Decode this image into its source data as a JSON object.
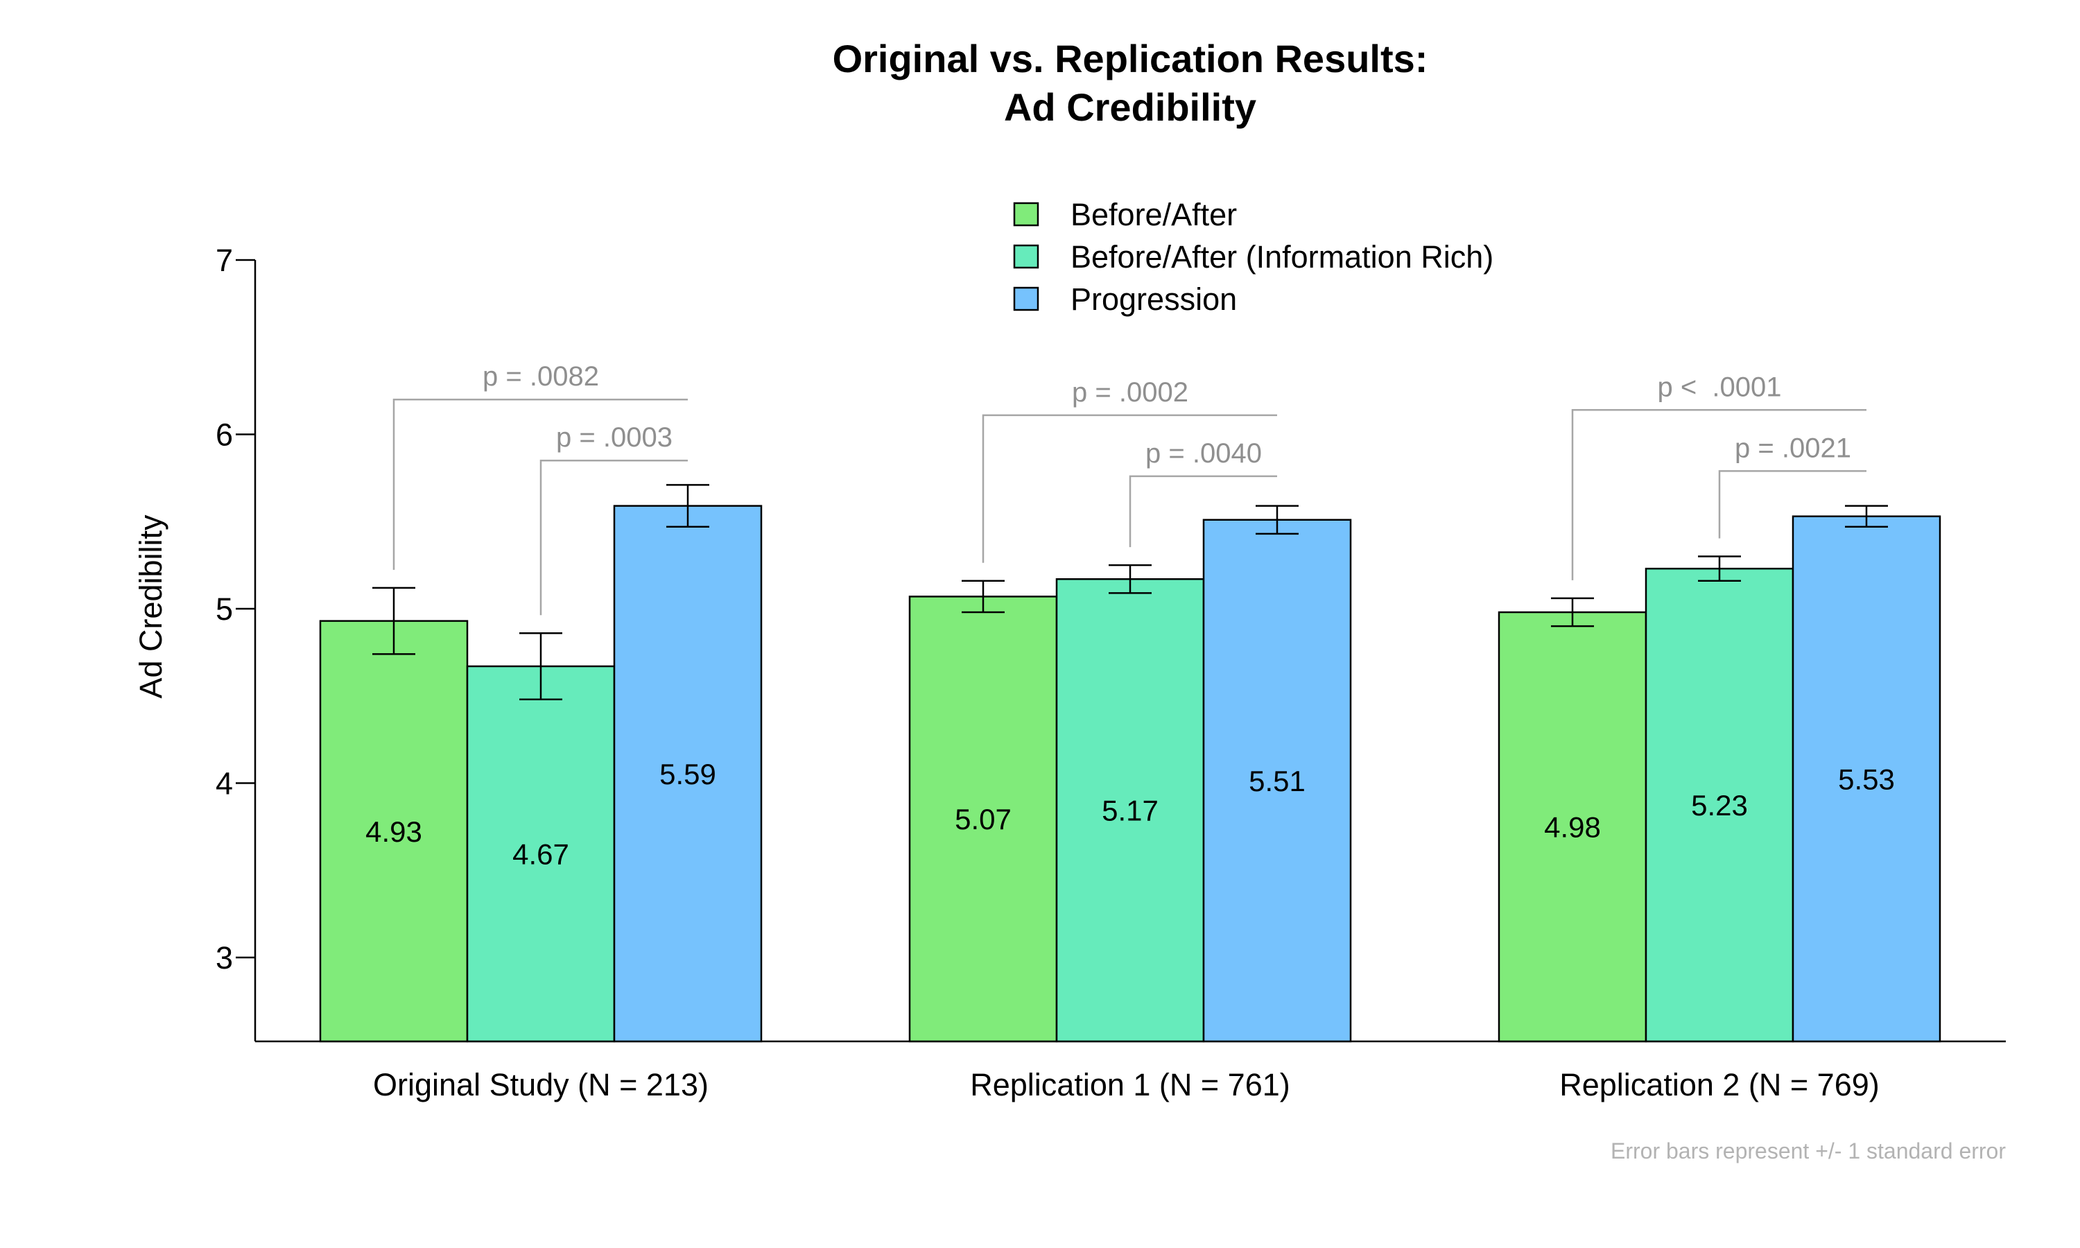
{
  "chart_data": {
    "type": "bar",
    "title": [
      "Original vs. Replication Results:",
      "Ad Credibility"
    ],
    "ylabel": "Ad Credibility",
    "xlabel": "",
    "ylim": [
      2.5,
      7
    ],
    "yticks": [
      3,
      4,
      5,
      6,
      7
    ],
    "grid": false,
    "legend_position": "top-center",
    "categories": [
      "Original Study (N = 213)",
      "Replication 1 (N = 761)",
      "Replication 2 (N = 769)"
    ],
    "series": [
      {
        "name": "Before/After",
        "color": "#80eb7a",
        "values": [
          4.93,
          5.07,
          4.98
        ],
        "se": [
          0.19,
          0.09,
          0.08
        ]
      },
      {
        "name": "Before/After (Information Rich)",
        "color": "#66ebbb",
        "values": [
          4.67,
          5.17,
          5.23
        ],
        "se": [
          0.19,
          0.08,
          0.07
        ]
      },
      {
        "name": "Progression",
        "color": "#76c2fd",
        "values": [
          5.59,
          5.51,
          5.53
        ],
        "se": [
          0.12,
          0.08,
          0.06
        ]
      }
    ],
    "comparisons": [
      {
        "group": 0,
        "from_series": 0,
        "to_series": 2,
        "label": "p = .0082",
        "level": 6.2
      },
      {
        "group": 0,
        "from_series": 1,
        "to_series": 2,
        "label": "p = .0003",
        "level": 5.85
      },
      {
        "group": 1,
        "from_series": 0,
        "to_series": 2,
        "label": "p = .0002",
        "level": 6.11
      },
      {
        "group": 1,
        "from_series": 1,
        "to_series": 2,
        "label": "p = .0040",
        "level": 5.76
      },
      {
        "group": 2,
        "from_series": 0,
        "to_series": 2,
        "label": "p <  .0001",
        "level": 6.14
      },
      {
        "group": 2,
        "from_series": 1,
        "to_series": 2,
        "label": "p = .0021",
        "level": 5.79
      }
    ],
    "footnote": "Error bars represent +/- 1 standard error"
  }
}
